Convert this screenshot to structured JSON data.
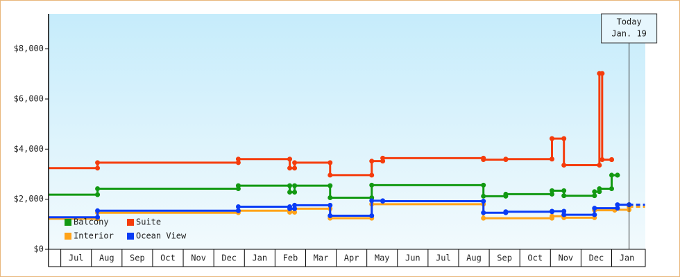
{
  "chart_data": {
    "type": "step-line",
    "xlim": [
      -0.4,
      19.1
    ],
    "xticks": [
      {
        "value": 0.5,
        "label": "Jul"
      },
      {
        "value": 1.5,
        "label": "Aug"
      },
      {
        "value": 2.5,
        "label": "Sep"
      },
      {
        "value": 3.5,
        "label": "Oct"
      },
      {
        "value": 4.5,
        "label": "Nov"
      },
      {
        "value": 5.5,
        "label": "Dec"
      },
      {
        "value": 6.5,
        "label": "Jan"
      },
      {
        "value": 7.5,
        "label": "Feb"
      },
      {
        "value": 8.5,
        "label": "Mar"
      },
      {
        "value": 9.5,
        "label": "Apr"
      },
      {
        "value": 10.5,
        "label": "May"
      },
      {
        "value": 11.5,
        "label": "Jun"
      },
      {
        "value": 12.5,
        "label": "Jul"
      },
      {
        "value": 13.5,
        "label": "Aug"
      },
      {
        "value": 14.5,
        "label": "Sep"
      },
      {
        "value": 15.5,
        "label": "Oct"
      },
      {
        "value": 16.5,
        "label": "Nov"
      },
      {
        "value": 17.5,
        "label": "Dec"
      },
      {
        "value": 18.5,
        "label": "Jan"
      }
    ],
    "ylim": [
      0,
      9400
    ],
    "yticks": [
      {
        "value": 0,
        "label": "$0"
      },
      {
        "value": 2000,
        "label": "$2,000"
      },
      {
        "value": 4000,
        "label": "$4,000"
      },
      {
        "value": 6000,
        "label": "$6,000"
      },
      {
        "value": 8000,
        "label": "$8,000"
      }
    ],
    "today": {
      "x": 18.57,
      "lines": [
        "Today",
        "Jan. 19"
      ]
    },
    "series": [
      {
        "name": "Balcony",
        "color": "#129912",
        "x": [
          -0.4,
          1.2,
          5.8,
          7.48,
          7.64,
          8.8,
          10.16,
          13.81,
          14.54,
          16.05,
          16.44,
          17.44,
          17.6,
          18.0,
          18.19
        ],
        "values": [
          2180,
          2420,
          2540,
          2280,
          2540,
          2060,
          2560,
          2120,
          2200,
          2340,
          2140,
          2300,
          2420,
          2960,
          2960
        ]
      },
      {
        "name": "Suite",
        "color": "#f53c0c",
        "x": [
          -0.4,
          1.2,
          5.8,
          7.48,
          7.64,
          8.8,
          10.16,
          10.52,
          13.81,
          14.54,
          16.05,
          16.44,
          17.6,
          17.69,
          18.0
        ],
        "values": [
          3240,
          3460,
          3600,
          3240,
          3460,
          2960,
          3520,
          3640,
          3580,
          3600,
          4420,
          3360,
          7020,
          3580,
          3580
        ]
      },
      {
        "name": "Interior",
        "color": "#ffa319",
        "x": [
          -0.4,
          1.2,
          5.8,
          7.48,
          7.64,
          8.8,
          10.16,
          13.81,
          16.05,
          16.44,
          17.44,
          18.1,
          18.57,
          19.09
        ],
        "values": [
          1220,
          1460,
          1540,
          1480,
          1620,
          1240,
          1800,
          1240,
          1320,
          1260,
          1560,
          1580,
          1700,
          1860
        ]
      },
      {
        "name": "Ocean View",
        "color": "#0a3cf5",
        "x": [
          -0.4,
          1.2,
          5.8,
          7.48,
          7.64,
          8.8,
          10.16,
          10.52,
          13.81,
          14.54,
          16.05,
          16.44,
          17.44,
          18.19,
          18.57,
          19.09
        ],
        "values": [
          1280,
          1540,
          1700,
          1620,
          1760,
          1340,
          1940,
          1920,
          1460,
          1500,
          1520,
          1380,
          1640,
          1780,
          1780,
          1960
        ]
      }
    ]
  }
}
